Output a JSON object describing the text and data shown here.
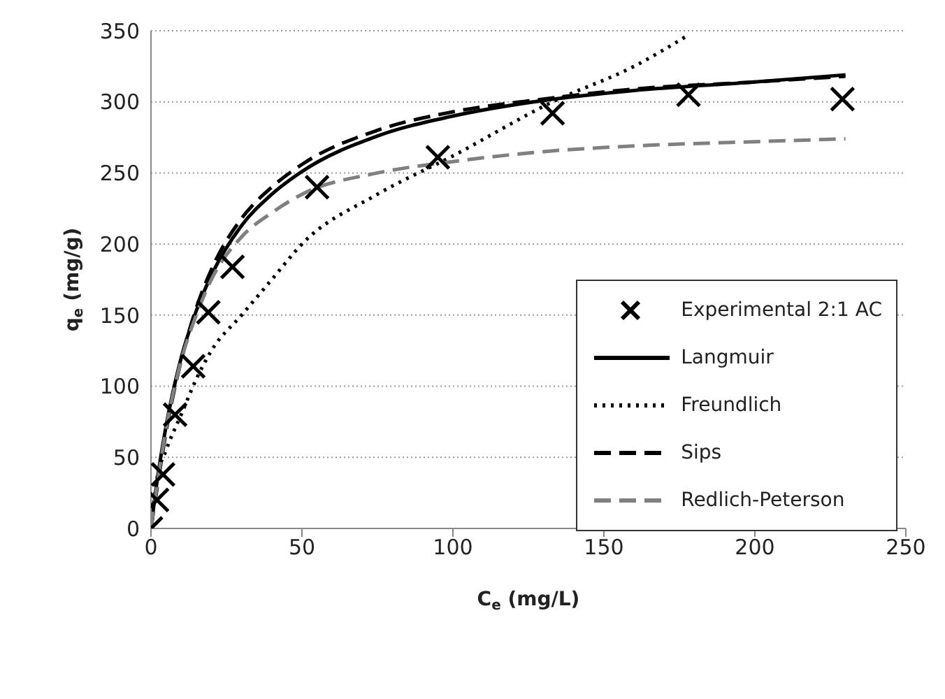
{
  "chart_data": {
    "type": "line",
    "xlabel": "C$_{e}$ (mg/L)",
    "ylabel": "q$_{e}$ (mg/g)",
    "xlim": [
      0,
      250
    ],
    "xticks": [
      0,
      50,
      100,
      150,
      200,
      250
    ],
    "ylim": [
      0,
      350
    ],
    "yticks": [
      0,
      50,
      100,
      150,
      200,
      250,
      300,
      350
    ],
    "grid": "y",
    "legend": "bottom right",
    "series": [
      {
        "name": "Experimental 2:1 AC",
        "type": "scatter",
        "marker": "cross",
        "color": "#000000",
        "x": [
          0,
          2,
          4,
          8,
          14,
          19,
          27,
          55,
          95,
          133,
          178,
          229
        ],
        "values": [
          0,
          20,
          38,
          80,
          114,
          152,
          184,
          240,
          261,
          292,
          305,
          302
        ]
      },
      {
        "name": "Langmuir",
        "marker": "none",
        "line_style": "solid",
        "color": "#000000",
        "x": [
          0,
          2,
          5,
          10,
          15,
          20,
          30,
          40,
          50,
          75,
          100,
          130,
          160,
          200,
          230
        ],
        "values": [
          0,
          33,
          72,
          120,
          153,
          178,
          213,
          235,
          251,
          276,
          290,
          301,
          308,
          314,
          319
        ]
      },
      {
        "name": "Freundlich",
        "marker": "none",
        "line_style": "dotted",
        "color": "#000000",
        "x": [
          0,
          2,
          5,
          10,
          15,
          20,
          30,
          40,
          50,
          75,
          100,
          133,
          160,
          178
        ],
        "values": [
          0,
          35,
          55,
          80,
          105,
          125,
          150,
          175,
          200,
          235,
          262,
          300,
          325,
          347
        ]
      },
      {
        "name": "Sips",
        "marker": "none",
        "line_style": "dashed",
        "color": "#000000",
        "x": [
          0,
          2,
          5,
          10,
          15,
          20,
          30,
          40,
          50,
          75,
          100,
          130,
          160,
          200,
          230
        ],
        "values": [
          0,
          28,
          68,
          118,
          155,
          182,
          218,
          240,
          256,
          280,
          293,
          302,
          309,
          314,
          318
        ]
      },
      {
        "name": "Redlich-Peterson",
        "marker": "none",
        "line_style": "dashed",
        "color": "#808080",
        "x": [
          0,
          2,
          5,
          10,
          15,
          20,
          30,
          40,
          50,
          75,
          100,
          130,
          160,
          200,
          230
        ],
        "values": [
          0,
          30,
          70,
          118,
          150,
          175,
          205,
          222,
          235,
          250,
          258,
          265,
          269,
          272,
          274
        ]
      }
    ]
  }
}
